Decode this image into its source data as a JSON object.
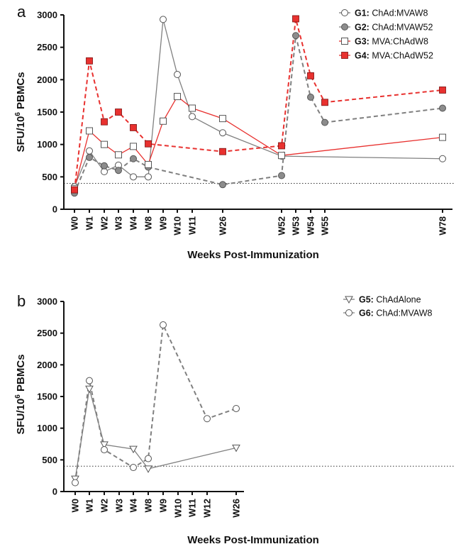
{
  "chart_data": [
    {
      "panel": "a",
      "type": "line",
      "ylabel": "SFU/10^6 PBMCs",
      "ylabel_main": "SFU/10",
      "ylabel_sup": "6",
      "ylabel_tail": " PBMCs",
      "xlabel": "Weeks Post-Immunization",
      "ylim": [
        0,
        3000
      ],
      "yticks": [
        0,
        500,
        1000,
        1500,
        2000,
        2500,
        3000
      ],
      "threshold": 400,
      "x_labels": [
        "W0",
        "W1",
        "W2",
        "W3",
        "W4",
        "W8",
        "W9",
        "W10",
        "W11",
        "W26",
        "W52",
        "W53",
        "W54",
        "W55",
        "W78"
      ],
      "legend_position": "top-right",
      "series": [
        {
          "key": "G1",
          "name": "ChAd:MVAW8",
          "marker": "circle-open",
          "color": "#808080",
          "dashed": false,
          "points": [
            [
              "W0",
              350
            ],
            [
              "W1",
              900
            ],
            [
              "W2",
              580
            ],
            [
              "W3",
              680
            ],
            [
              "W4",
              500
            ],
            [
              "W8",
              500
            ],
            [
              "W9",
              2930
            ],
            [
              "W10",
              2080
            ],
            [
              "W11",
              1430
            ],
            [
              "W26",
              1180
            ],
            [
              "W52",
              820
            ],
            [
              "W78",
              780
            ]
          ]
        },
        {
          "key": "G2",
          "name": "ChAd:MVAW52",
          "marker": "circle-filled",
          "color": "#808080",
          "dashed": true,
          "points": [
            [
              "W0",
              250
            ],
            [
              "W1",
              800
            ],
            [
              "W2",
              670
            ],
            [
              "W3",
              600
            ],
            [
              "W4",
              780
            ],
            [
              "W8",
              650
            ],
            [
              "W26",
              380
            ],
            [
              "W52",
              520
            ],
            [
              "W53",
              2680
            ],
            [
              "W54",
              1730
            ],
            [
              "W55",
              1340
            ],
            [
              "W78",
              1560
            ]
          ]
        },
        {
          "key": "G3",
          "name": "MVA:ChAdW8",
          "marker": "square-open",
          "color": "#e8312f",
          "dashed": false,
          "points": [
            [
              "W0",
              320
            ],
            [
              "W1",
              1210
            ],
            [
              "W2",
              1000
            ],
            [
              "W3",
              840
            ],
            [
              "W4",
              970
            ],
            [
              "W8",
              690
            ],
            [
              "W9",
              1360
            ],
            [
              "W10",
              1740
            ],
            [
              "W11",
              1560
            ],
            [
              "W26",
              1400
            ],
            [
              "W52",
              830
            ],
            [
              "W78",
              1110
            ]
          ]
        },
        {
          "key": "G4",
          "name": "MVA:ChAdW52",
          "marker": "square-filled",
          "color": "#e8312f",
          "dashed": true,
          "points": [
            [
              "W0",
              300
            ],
            [
              "W1",
              2290
            ],
            [
              "W2",
              1350
            ],
            [
              "W3",
              1500
            ],
            [
              "W4",
              1260
            ],
            [
              "W8",
              1010
            ],
            [
              "W26",
              890
            ],
            [
              "W52",
              980
            ],
            [
              "W53",
              2940
            ],
            [
              "W54",
              2060
            ],
            [
              "W55",
              1650
            ],
            [
              "W78",
              1840
            ]
          ]
        }
      ]
    },
    {
      "panel": "b",
      "type": "line",
      "ylabel": "SFU/10^6 PBMCs",
      "ylabel_main": "SFU/10",
      "ylabel_sup": "6",
      "ylabel_tail": " PBMCs",
      "xlabel": "Weeks Post-Immunization",
      "ylim": [
        0,
        3000
      ],
      "yticks": [
        0,
        500,
        1000,
        1500,
        2000,
        2500,
        3000
      ],
      "threshold": 400,
      "x_labels": [
        "W0",
        "W1",
        "W2",
        "W3",
        "W4",
        "W8",
        "W9",
        "W10",
        "W11",
        "W12",
        "W26"
      ],
      "legend_position": "top-right",
      "series": [
        {
          "key": "G5",
          "name": "ChAdAlone",
          "marker": "triangle-down-open",
          "color": "#808080",
          "dashed": false,
          "points": [
            [
              "W0",
              200
            ],
            [
              "W1",
              1620
            ],
            [
              "W2",
              740
            ],
            [
              "W4",
              670
            ],
            [
              "W8",
              360
            ],
            [
              "W26",
              690
            ]
          ]
        },
        {
          "key": "G6",
          "name": "ChAd:MVAW8",
          "marker": "circle-open",
          "color": "#808080",
          "dashed": true,
          "points": [
            [
              "W0",
              140
            ],
            [
              "W1",
              1750
            ],
            [
              "W2",
              660
            ],
            [
              "W4",
              380
            ],
            [
              "W8",
              520
            ],
            [
              "W9",
              2630
            ],
            [
              "W12",
              1150
            ],
            [
              "W26",
              1310
            ]
          ]
        }
      ]
    }
  ]
}
